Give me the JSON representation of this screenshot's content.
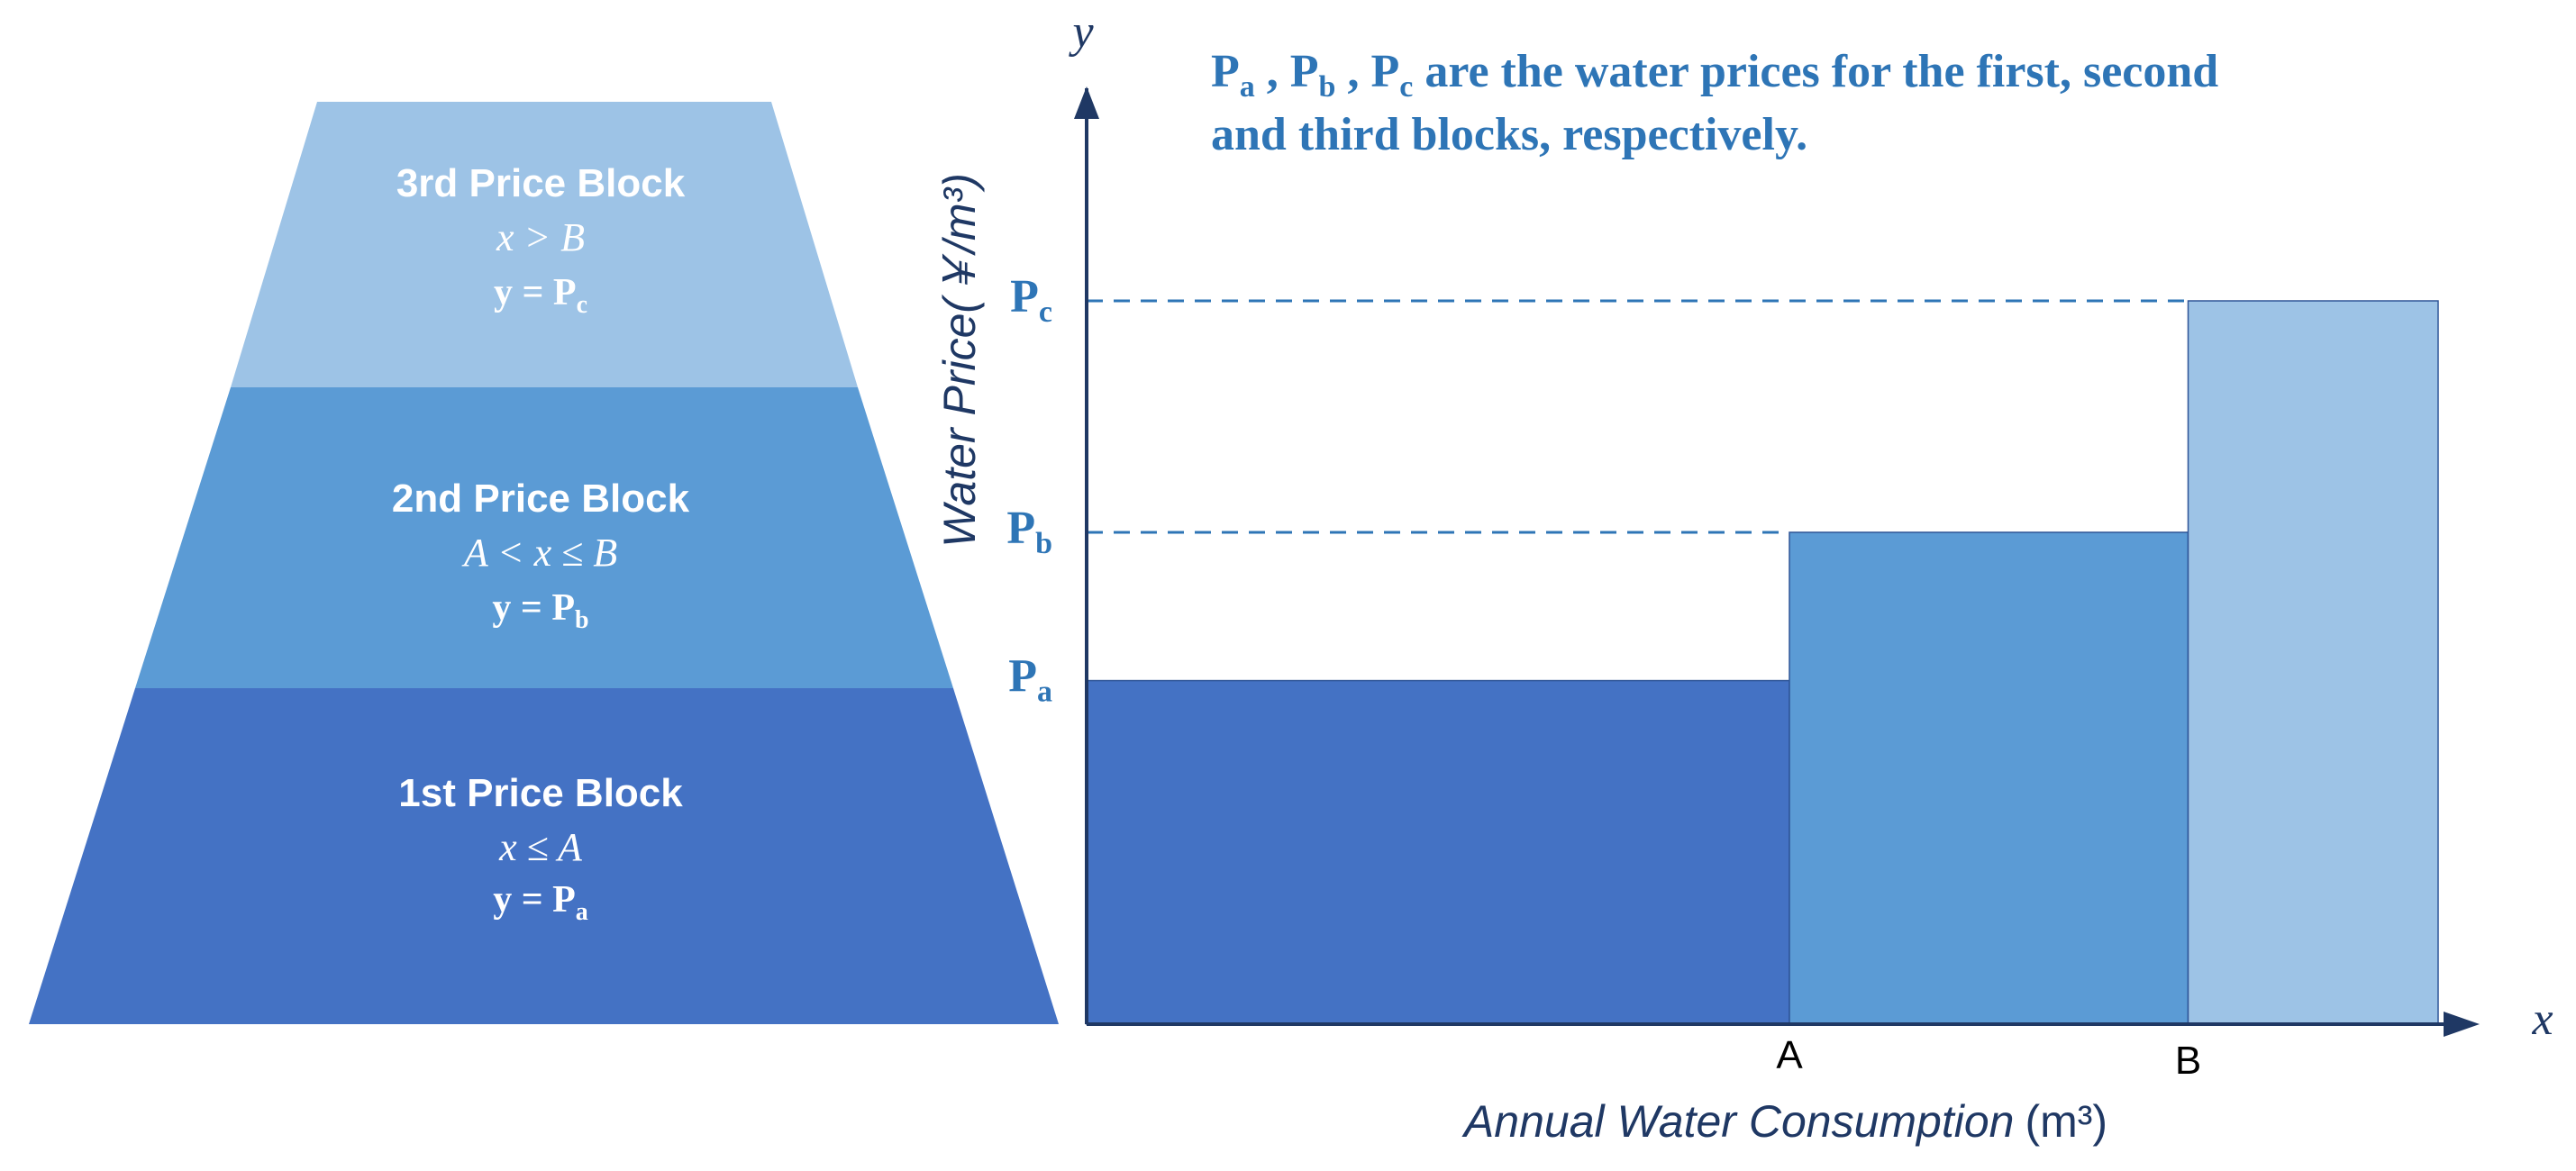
{
  "colors": {
    "block1": "#4472c4",
    "block2": "#5b9bd5",
    "block3": "#9dc3e6",
    "axis": "#1f3864",
    "accent": "#2e75b6",
    "text_light": "#ffffff"
  },
  "pyramid": {
    "blocks": [
      {
        "title": "3rd Price Block",
        "condition": "x > B",
        "eq_main": "y = P",
        "eq_sub": "c"
      },
      {
        "title": "2nd Price Block",
        "condition": "A < x ≤ B",
        "eq_main": "y = P",
        "eq_sub": "b"
      },
      {
        "title": "1st Price Block",
        "condition": "x ≤ A",
        "eq_main": "y = P",
        "eq_sub": "a"
      }
    ]
  },
  "note": {
    "p_main": "P",
    "sub_a": "a",
    "sub_b": "b",
    "sub_c": "c",
    "sep1": " , ",
    "sep2": " , ",
    "line1_rest": " are the water prices for the first, second",
    "line2": "and third blocks, respectively."
  },
  "chart_data": {
    "type": "bar",
    "title": "",
    "x_var": "x",
    "y_var": "y",
    "xlabel_main": "Annual Water Consumption",
    "xlabel_unit": "(m³)",
    "ylabel": "Water Price(￥/m³)",
    "x_ticks": [
      "A",
      "B"
    ],
    "y_ticks": [
      {
        "main": "P",
        "sub": "a"
      },
      {
        "main": "P",
        "sub": "b"
      },
      {
        "main": "P",
        "sub": "c"
      }
    ],
    "x_domain": [
      0,
      100
    ],
    "y_domain": [
      0,
      100
    ],
    "bars": [
      {
        "name": "1st block",
        "x0": 0,
        "x1": 52,
        "y": 47.5
      },
      {
        "name": "2nd block",
        "x0": 52,
        "x1": 81.5,
        "y": 68
      },
      {
        "name": "3rd block",
        "x0": 81.5,
        "x1": 100,
        "y": 100
      }
    ],
    "x_tick_values": [
      52,
      81.5
    ],
    "y_tick_values": [
      47.5,
      68,
      100
    ],
    "dashed_guides": [
      68,
      100
    ]
  }
}
